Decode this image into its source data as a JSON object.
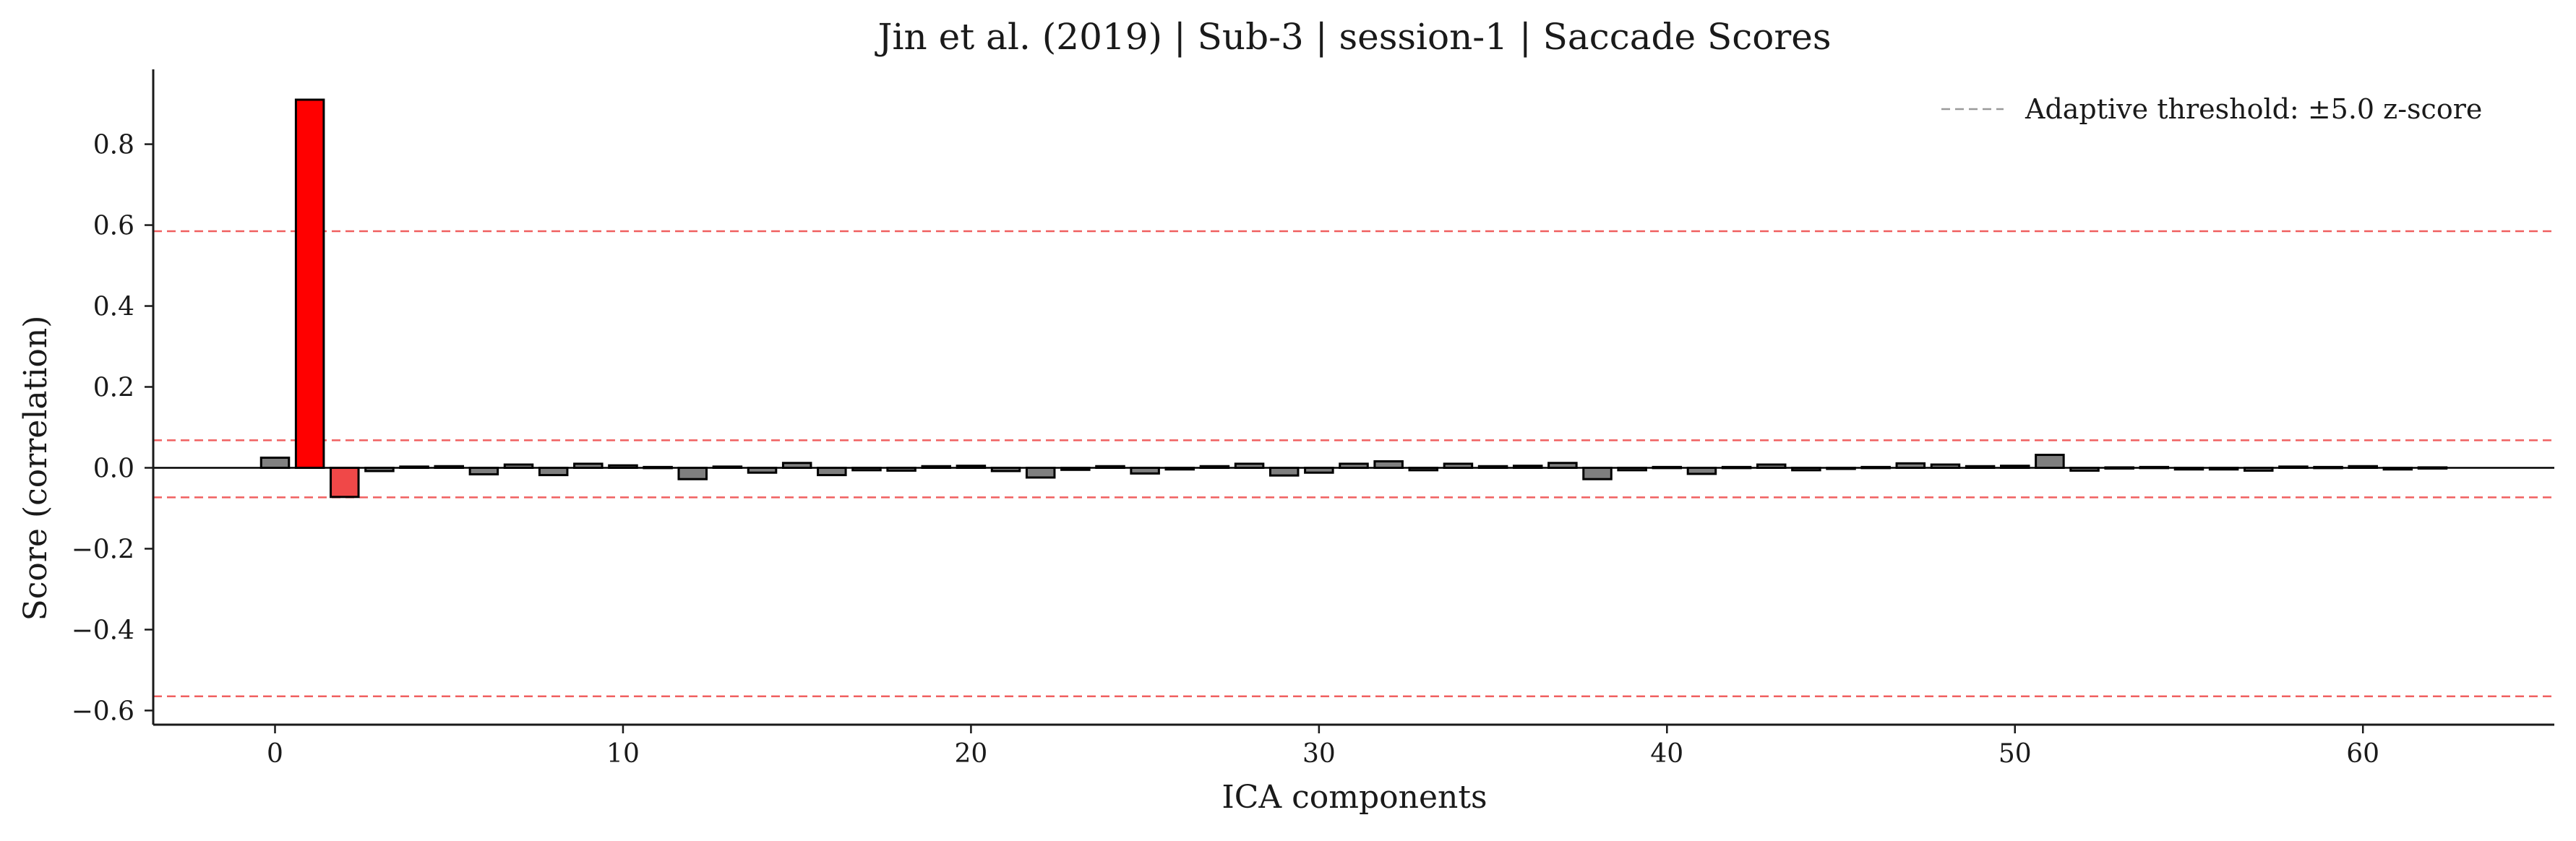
{
  "chart_data": {
    "type": "bar",
    "title": "Jin et al. (2019) | Sub-3 | session-1 | Saccade Scores",
    "xlabel": "ICA components",
    "ylabel": "Score (correlation)",
    "xlim": [
      -3.5,
      65.5
    ],
    "ylim": [
      -0.635,
      0.985
    ],
    "xticks": [
      0,
      10,
      20,
      30,
      40,
      50,
      60
    ],
    "xtick_labels": [
      "0",
      "10",
      "20",
      "30",
      "40",
      "50",
      "60"
    ],
    "yticks": [
      -0.6,
      -0.4,
      -0.2,
      0.0,
      0.2,
      0.4,
      0.6,
      0.8
    ],
    "ytick_labels": [
      "−0.6",
      "−0.4",
      "−0.2",
      "0.0",
      "0.2",
      "0.4",
      "0.6",
      "0.8"
    ],
    "grid": false,
    "legend": {
      "position": "top-right",
      "entries": [
        "Adaptive threshold: ±5.0 z-score"
      ]
    },
    "threshold_lines": [
      0.585,
      0.068,
      -0.073,
      -0.565
    ],
    "x": [
      0,
      1,
      2,
      3,
      4,
      5,
      6,
      7,
      8,
      9,
      10,
      11,
      12,
      13,
      14,
      15,
      16,
      17,
      18,
      19,
      20,
      21,
      22,
      23,
      24,
      25,
      26,
      27,
      28,
      29,
      30,
      31,
      32,
      33,
      34,
      35,
      36,
      37,
      38,
      39,
      40,
      41,
      42,
      43,
      44,
      45,
      46,
      47,
      48,
      49,
      50,
      51,
      52,
      53,
      54,
      55,
      56,
      57,
      58,
      59,
      60,
      61,
      62
    ],
    "values": [
      0.025,
      0.91,
      -0.072,
      -0.008,
      0.003,
      0.004,
      -0.016,
      0.008,
      -0.018,
      0.01,
      0.006,
      0.002,
      -0.028,
      0.003,
      -0.012,
      0.012,
      -0.018,
      -0.006,
      -0.007,
      0.004,
      0.005,
      -0.008,
      -0.024,
      -0.005,
      0.004,
      -0.014,
      -0.004,
      0.004,
      0.01,
      -0.019,
      -0.012,
      0.01,
      0.016,
      -0.006,
      0.01,
      0.004,
      0.005,
      0.012,
      -0.028,
      -0.006,
      0.002,
      -0.015,
      0.002,
      0.008,
      -0.006,
      -0.002,
      0.002,
      0.011,
      0.008,
      0.004,
      0.005,
      0.032,
      -0.007,
      0.001,
      0.002,
      -0.004,
      -0.004,
      -0.007,
      0.003,
      0.002,
      0.004,
      -0.004,
      0.001
    ],
    "bar_colors": {
      "0": "#808080",
      "1": "#ff0000",
      "2": "#f04848",
      "default": "#7f7f7f"
    },
    "colors": {
      "bar_edge": "#000000",
      "threshold": "#f06060",
      "legend_line": "#999999",
      "axis": "#1a1a1a"
    }
  }
}
